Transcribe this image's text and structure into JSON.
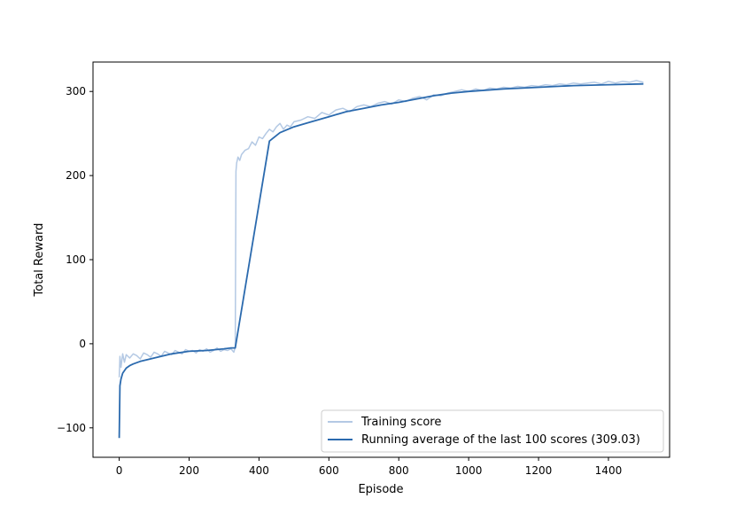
{
  "chart_data": {
    "type": "line",
    "title": "",
    "xlabel": "Episode",
    "ylabel": "Total Reward",
    "xlim": [
      -75,
      1575
    ],
    "ylim": [
      -135,
      335
    ],
    "xticks": [
      0,
      200,
      400,
      600,
      800,
      1000,
      1200,
      1400
    ],
    "yticks": [
      -100,
      0,
      100,
      200,
      300
    ],
    "grid": false,
    "legend_position": "bottom-right",
    "colors": {
      "training": "#b4c9e4",
      "average": "#2b6aae"
    },
    "series": [
      {
        "name": "Training score",
        "style": "light",
        "x": [
          0,
          2,
          5,
          10,
          15,
          20,
          30,
          40,
          50,
          60,
          70,
          80,
          90,
          100,
          110,
          120,
          130,
          140,
          150,
          160,
          170,
          180,
          190,
          200,
          210,
          220,
          230,
          240,
          250,
          260,
          270,
          280,
          290,
          300,
          310,
          320,
          328,
          332,
          334,
          336,
          340,
          345,
          350,
          360,
          370,
          380,
          390,
          400,
          410,
          420,
          430,
          440,
          450,
          460,
          470,
          480,
          490,
          500,
          520,
          540,
          560,
          580,
          600,
          620,
          640,
          660,
          680,
          700,
          720,
          740,
          760,
          780,
          800,
          820,
          840,
          860,
          880,
          900,
          920,
          940,
          960,
          980,
          1000,
          1020,
          1040,
          1060,
          1080,
          1100,
          1120,
          1140,
          1160,
          1180,
          1200,
          1220,
          1240,
          1260,
          1280,
          1300,
          1320,
          1340,
          1360,
          1380,
          1400,
          1420,
          1440,
          1460,
          1480,
          1500
        ],
        "values": [
          -40,
          -15,
          -28,
          -12,
          -22,
          -13,
          -17,
          -12,
          -14,
          -18,
          -11,
          -13,
          -16,
          -10,
          -12,
          -15,
          -9,
          -11,
          -13,
          -8,
          -10,
          -12,
          -7,
          -9,
          -8,
          -11,
          -7,
          -9,
          -6,
          -10,
          -8,
          -5,
          -9,
          -7,
          -8,
          -6,
          -10,
          -4,
          205,
          215,
          222,
          218,
          225,
          230,
          232,
          240,
          236,
          246,
          244,
          250,
          255,
          252,
          258,
          262,
          255,
          260,
          258,
          264,
          266,
          270,
          268,
          275,
          272,
          278,
          280,
          276,
          282,
          284,
          282,
          286,
          288,
          285,
          290,
          288,
          292,
          294,
          290,
          296,
          295,
          298,
          300,
          302,
          300,
          303,
          301,
          304,
          303,
          305,
          304,
          306,
          305,
          307,
          306,
          308,
          307,
          309,
          308,
          310,
          309,
          310,
          311,
          309,
          312,
          310,
          312,
          311,
          313,
          311
        ]
      },
      {
        "name": "Running average of the last 100 scores (309.03)",
        "style": "dark",
        "x": [
          0,
          2,
          5,
          10,
          20,
          30,
          40,
          60,
          80,
          100,
          150,
          200,
          250,
          300,
          320,
          332,
          430,
          460,
          500,
          550,
          600,
          650,
          700,
          750,
          800,
          850,
          900,
          950,
          1000,
          1100,
          1200,
          1300,
          1400,
          1500
        ],
        "values": [
          -112,
          -50,
          -42,
          -35,
          -29,
          -26,
          -24,
          -21,
          -19,
          -17,
          -12,
          -9,
          -8,
          -6,
          -5,
          -5,
          241,
          251,
          258,
          264,
          270,
          276,
          280,
          284,
          287,
          291,
          295,
          298,
          300,
          303,
          305,
          307,
          308,
          309
        ]
      }
    ]
  }
}
